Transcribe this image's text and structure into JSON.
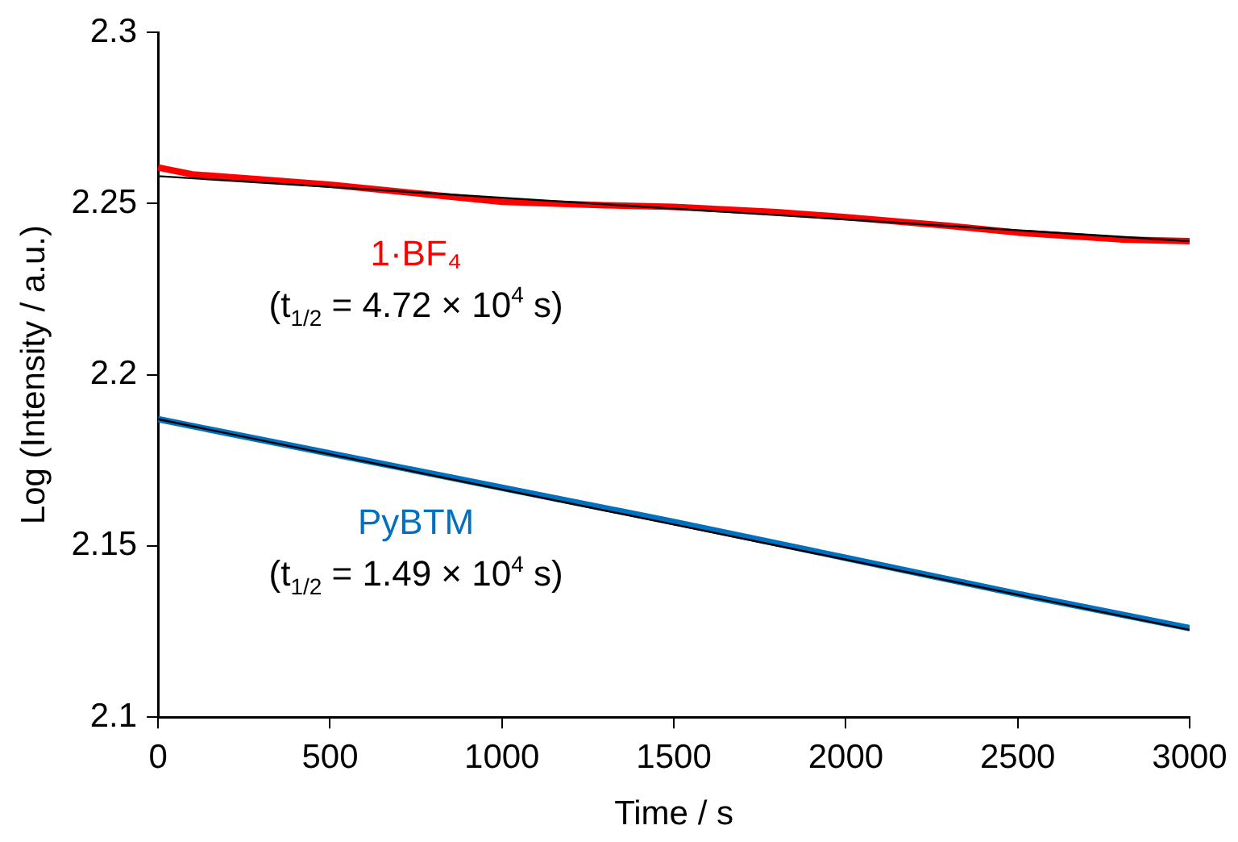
{
  "chart_data": {
    "type": "line",
    "xlabel": "Time / s",
    "ylabel": "Log (Intensity / a.u.)",
    "xlim": [
      0,
      3000
    ],
    "xticks": [
      0,
      500,
      1000,
      1500,
      2000,
      2500,
      3000
    ],
    "ylim": [
      2.1,
      2.3
    ],
    "yticks": [
      2.1,
      2.15,
      2.2,
      2.25,
      2.3
    ],
    "grid": false,
    "legend": false,
    "marker": "none",
    "line_style": "solid",
    "series": [
      {
        "name": "1·BF₄",
        "color": "#ff0000",
        "x": [
          0,
          100,
          300,
          500,
          800,
          1000,
          1300,
          1500,
          1800,
          2000,
          2300,
          2500,
          2800,
          3000
        ],
        "values": [
          2.2605,
          2.2585,
          2.257,
          2.2555,
          2.2525,
          2.2505,
          2.2495,
          2.249,
          2.2475,
          2.246,
          2.2435,
          2.2415,
          2.2395,
          2.239
        ]
      },
      {
        "name": "PyBTM",
        "color": "#0070c0",
        "x": [
          0,
          500,
          1000,
          1500,
          2000,
          2500,
          3000
        ],
        "values": [
          2.187,
          2.177,
          2.167,
          2.157,
          2.1465,
          2.136,
          2.126
        ]
      },
      {
        "color": "#000000",
        "x": [
          0,
          3000
        ],
        "values": [
          2.258,
          2.239
        ]
      },
      {
        "color": "#000000",
        "x": [
          0,
          3000
        ],
        "values": [
          2.187,
          2.1255
        ]
      }
    ],
    "annotations": [
      "(t$_{1/2}$ = 4.72 × 10$^{4}$ s)",
      "(t$_{1/2}$ = 1.49 × 10$^{4}$ s)"
    ]
  }
}
